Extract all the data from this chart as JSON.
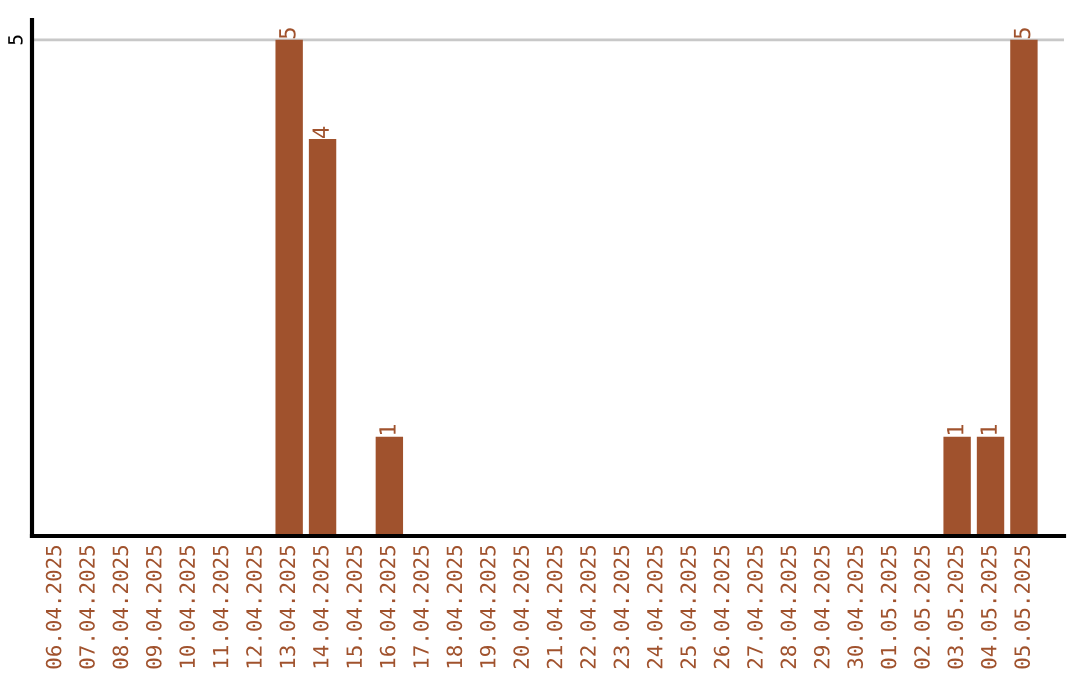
{
  "chart_data": {
    "type": "bar",
    "categories": [
      "06.04.2025",
      "07.04.2025",
      "08.04.2025",
      "09.04.2025",
      "10.04.2025",
      "11.04.2025",
      "12.04.2025",
      "13.04.2025",
      "14.04.2025",
      "15.04.2025",
      "16.04.2025",
      "17.04.2025",
      "18.04.2025",
      "19.04.2025",
      "20.04.2025",
      "21.04.2025",
      "22.04.2025",
      "23.04.2025",
      "24.04.2025",
      "25.04.2025",
      "26.04.2025",
      "27.04.2025",
      "28.04.2025",
      "29.04.2025",
      "30.04.2025",
      "01.05.2025",
      "02.05.2025",
      "03.05.2025",
      "04.05.2025",
      "05.05.2025"
    ],
    "values": [
      0,
      0,
      0,
      0,
      0,
      0,
      0,
      5,
      4,
      0,
      1,
      0,
      0,
      0,
      0,
      0,
      0,
      0,
      0,
      0,
      0,
      0,
      0,
      0,
      0,
      0,
      0,
      1,
      1,
      5
    ],
    "value_labels": [
      null,
      null,
      null,
      null,
      null,
      null,
      null,
      "5",
      "4",
      null,
      "1",
      null,
      null,
      null,
      null,
      null,
      null,
      null,
      null,
      null,
      null,
      null,
      null,
      null,
      null,
      null,
      null,
      "1",
      "1",
      "5"
    ],
    "color": "#a0522d",
    "ylim": [
      0,
      5.2
    ],
    "yticks": [
      5
    ],
    "grid": "y"
  }
}
